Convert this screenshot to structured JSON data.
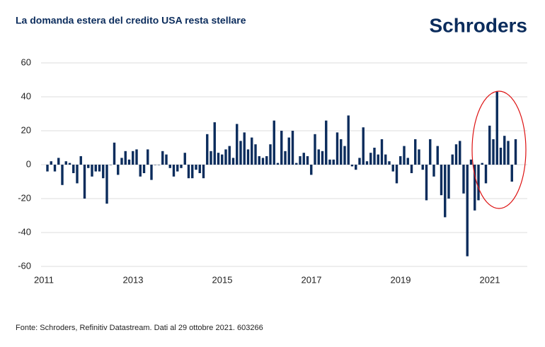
{
  "brand": "Schroders",
  "chart_data": {
    "type": "bar",
    "title": "La domanda estera del credito USA resta stellare",
    "source": "Fonte: Schroders, Refinitiv Datastream. Dati al 29 ottobre 2021. 603266",
    "color": "#0b2c5c",
    "ylim": [
      -60,
      60
    ],
    "yticks": [
      -60,
      -40,
      -20,
      0,
      20,
      40,
      60
    ],
    "grid": true,
    "categories": [
      "2011",
      null,
      null,
      null,
      null,
      null,
      null,
      null,
      null,
      null,
      null,
      null,
      null,
      null,
      null,
      null,
      null,
      null,
      null,
      null,
      null,
      null,
      null,
      null,
      "2013",
      null,
      null,
      null,
      null,
      null,
      null,
      null,
      null,
      null,
      null,
      null,
      null,
      null,
      null,
      null,
      null,
      null,
      null,
      null,
      null,
      null,
      null,
      null,
      "2015",
      null,
      null,
      null,
      null,
      null,
      null,
      null,
      null,
      null,
      null,
      null,
      null,
      null,
      null,
      null,
      null,
      null,
      null,
      null,
      null,
      null,
      null,
      null,
      "2017",
      null,
      null,
      null,
      null,
      null,
      null,
      null,
      null,
      null,
      null,
      null,
      null,
      null,
      null,
      null,
      null,
      null,
      null,
      null,
      null,
      null,
      null,
      null,
      "2019",
      null,
      null,
      null,
      null,
      null,
      null,
      null,
      null,
      null,
      null,
      null,
      null,
      null,
      null,
      null,
      null,
      null,
      null,
      null,
      null,
      null,
      null,
      null,
      "2021",
      null,
      null,
      null,
      null,
      null,
      null
    ],
    "values": [
      -4,
      2,
      -4,
      4,
      -12,
      2,
      1,
      -5,
      -11,
      5,
      -20,
      -2,
      -7,
      -4,
      -4,
      -8,
      -23,
      0,
      13,
      -6,
      4,
      8,
      3,
      8,
      9,
      -7,
      -5,
      9,
      -9,
      0,
      0,
      8,
      6,
      -2,
      -7,
      -4,
      -2,
      7,
      -8,
      -8,
      -3,
      -5,
      -8,
      18,
      8,
      25,
      7,
      6,
      9,
      11,
      4,
      24,
      14,
      19,
      9,
      16,
      12,
      5,
      4,
      5,
      12,
      26,
      1,
      20,
      8,
      16,
      20,
      1,
      5,
      7,
      5,
      -6,
      18,
      9,
      8,
      26,
      3,
      3,
      19,
      15,
      11,
      29,
      -1,
      -3,
      4,
      22,
      2,
      7,
      10,
      6,
      15,
      6,
      2,
      -4,
      -11,
      5,
      11,
      4,
      -5,
      15,
      9,
      -3,
      -21,
      15,
      -7,
      11,
      -18,
      -31,
      -20,
      6,
      12,
      14,
      -17,
      -54,
      3,
      -27,
      -21,
      1,
      -11,
      23,
      15,
      43,
      10,
      17,
      14,
      -10,
      15
    ]
  }
}
